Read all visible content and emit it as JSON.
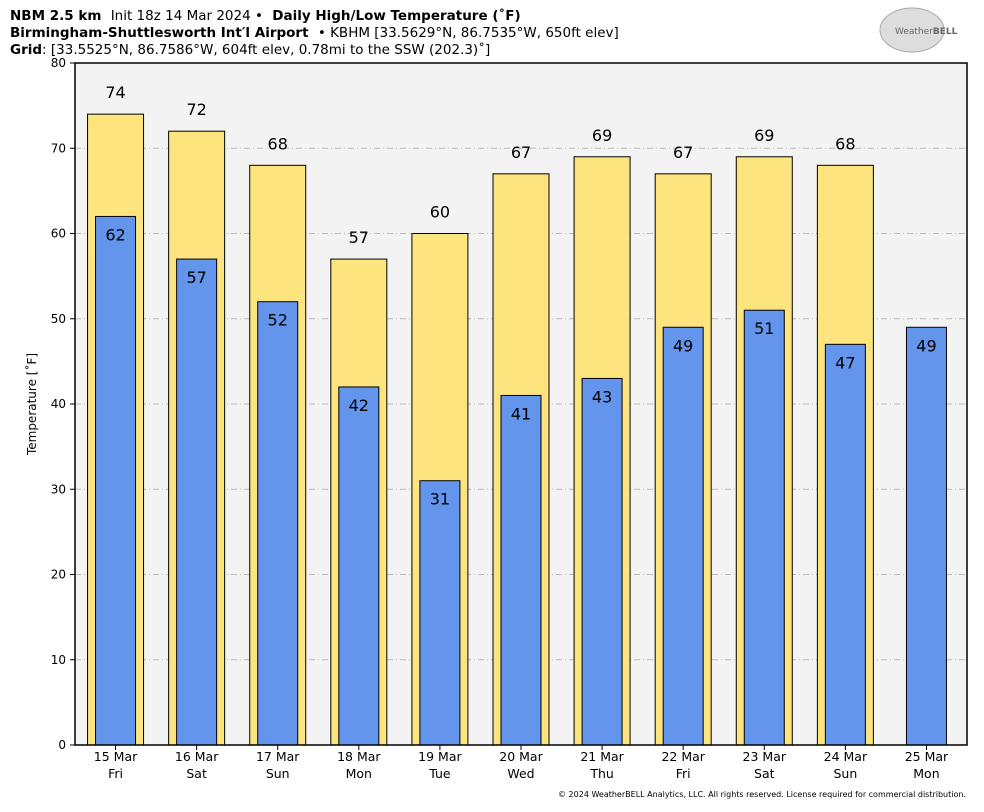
{
  "chart_data": {
    "type": "bar",
    "title": [
      "NBM 2.5 km",
      "Init 18z 14 Mar 2024 •",
      "Daily High/Low Temperature (˚F)"
    ],
    "subtitle": [
      "Birmingham-Shuttlesworth Int′l Airport",
      "• KBHM [33.5629°N, 86.7535°W, 650ft elev]"
    ],
    "grid_info": [
      "Grid",
      ": [33.5525°N, 86.7586°W, 604ft elev, 0.78mi to the SSW (202.3)˚]"
    ],
    "logo": [
      "Weather",
      "BELL"
    ],
    "credit": "© 2024 WeatherBELL Analytics, LLC. All rights reserved. License required for commercial distribution.",
    "y_label": "Temperature [˚F]",
    "categories": [
      "15 Mar",
      "16 Mar",
      "17 Mar",
      "18 Mar",
      "19 Mar",
      "20 Mar",
      "21 Mar",
      "22 Mar",
      "23 Mar",
      "24 Mar",
      "25 Mar"
    ],
    "weekdays": [
      "Fri",
      "Sat",
      "Sun",
      "Mon",
      "Tue",
      "Wed",
      "Thu",
      "Fri",
      "Sat",
      "Sun",
      "Mon"
    ],
    "series": [
      {
        "color": "#fde47f",
        "values": [
          74,
          72,
          68,
          57,
          60,
          67,
          69,
          67,
          69,
          68,
          null
        ]
      },
      {
        "color": "#6495ed",
        "values": [
          62,
          57,
          52,
          42,
          31,
          41,
          43,
          49,
          51,
          47,
          49
        ]
      }
    ],
    "ylim": [
      0,
      80
    ],
    "yticks": [
      0,
      10,
      20,
      30,
      40,
      50,
      60,
      70,
      80
    ],
    "grid": true
  }
}
